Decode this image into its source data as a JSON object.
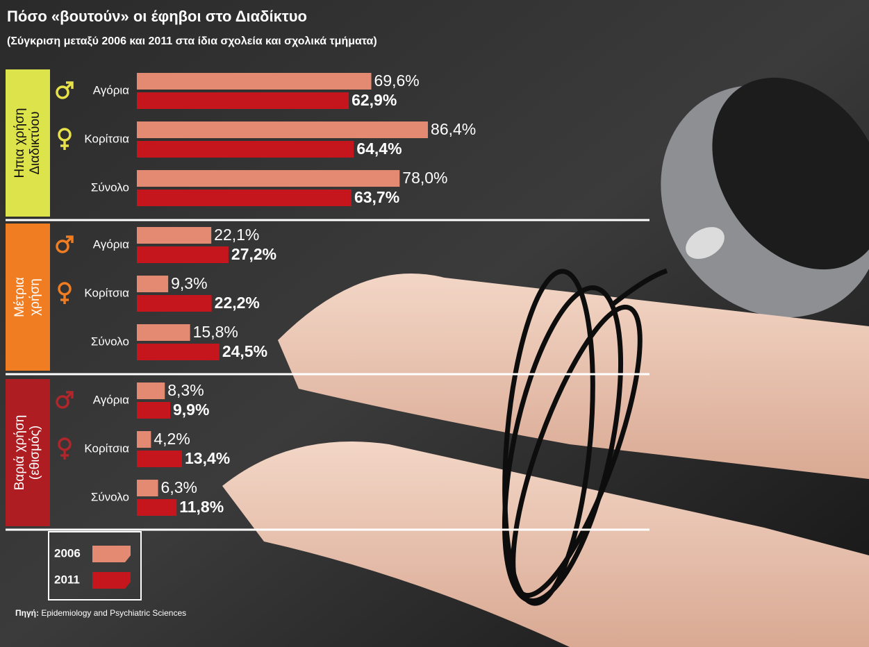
{
  "title": "Πόσο «βουτούν» οι έφηβοι στο Διαδίκτυο",
  "subtitle": "(Σύγκριση μεταξύ 2006 και 2011 στα ίδια σχολεία και σχολικά τμήματα)",
  "source_label": "Πηγή:",
  "source": "Epidemiology and Psychiatric Sciences",
  "chart_data": [
    {
      "type": "bar",
      "orientation": "horizontal",
      "group": [
        "Ηπια χρήση",
        "Διαδικτύου"
      ],
      "group_color": "#dde34a",
      "group_text_color": "#111111",
      "symbol_color": "#e8e24a",
      "categories": [
        "Αγόρια",
        "Κορίτσια",
        "Σύνολο"
      ],
      "xlim": [
        0,
        100
      ],
      "series": [
        {
          "name": "2006",
          "color": "#e58a72",
          "values": [
            69.6,
            86.4,
            78.0
          ],
          "value_labels": [
            "69,6%",
            "86,4%",
            "78,0%"
          ]
        },
        {
          "name": "2011",
          "color": "#c4161c",
          "values": [
            62.9,
            64.4,
            63.7
          ],
          "value_labels": [
            "62,9%",
            "64,4%",
            "63,7%"
          ]
        }
      ]
    },
    {
      "type": "bar",
      "orientation": "horizontal",
      "group": [
        "Μέτρια",
        "χρήση"
      ],
      "group_color": "#f07d22",
      "group_text_color": "#ffffff",
      "symbol_color": "#f07d22",
      "categories": [
        "Αγόρια",
        "Κορίτσια",
        "Σύνολο"
      ],
      "xlim": [
        0,
        100
      ],
      "series": [
        {
          "name": "2006",
          "color": "#e58a72",
          "values": [
            22.1,
            9.3,
            15.8
          ],
          "value_labels": [
            "22,1%",
            "9,3%",
            "15,8%"
          ]
        },
        {
          "name": "2011",
          "color": "#c4161c",
          "values": [
            27.2,
            22.2,
            24.5
          ],
          "value_labels": [
            "27,2%",
            "22,2%",
            "24,5%"
          ]
        }
      ]
    },
    {
      "type": "bar",
      "orientation": "horizontal",
      "group": [
        "Βαριά χρήση",
        "(εθισμός)"
      ],
      "group_color": "#ad1d22",
      "group_text_color": "#ffffff",
      "symbol_color": "#b0262a",
      "categories": [
        "Αγόρια",
        "Κορίτσια",
        "Σύνολο"
      ],
      "xlim": [
        0,
        100
      ],
      "series": [
        {
          "name": "2006",
          "color": "#e58a72",
          "values": [
            8.3,
            4.2,
            6.3
          ],
          "value_labels": [
            "8,3%",
            "4,2%",
            "6,3%"
          ]
        },
        {
          "name": "2011",
          "color": "#c4161c",
          "values": [
            9.9,
            13.4,
            11.8
          ],
          "value_labels": [
            "9,9%",
            "13,4%",
            "11,8%"
          ]
        }
      ]
    }
  ]
}
